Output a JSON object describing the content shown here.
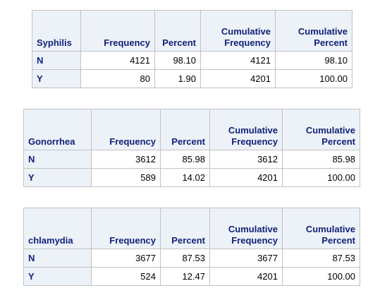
{
  "columns": [
    "Frequency",
    "Percent",
    "Cumulative Frequency",
    "Cumulative Percent"
  ],
  "tables": [
    {
      "variable": "Syphilis",
      "rows": [
        {
          "level": "N",
          "frequency": "4121",
          "percent": "98.10",
          "cum_frequency": "4121",
          "cum_percent": "98.10"
        },
        {
          "level": "Y",
          "frequency": "80",
          "percent": "1.90",
          "cum_frequency": "4201",
          "cum_percent": "100.00"
        }
      ]
    },
    {
      "variable": "Gonorrhea",
      "rows": [
        {
          "level": "N",
          "frequency": "3612",
          "percent": "85.98",
          "cum_frequency": "3612",
          "cum_percent": "85.98"
        },
        {
          "level": "Y",
          "frequency": "589",
          "percent": "14.02",
          "cum_frequency": "4201",
          "cum_percent": "100.00"
        }
      ]
    },
    {
      "variable": "chlamydia",
      "rows": [
        {
          "level": "N",
          "frequency": "3677",
          "percent": "87.53",
          "cum_frequency": "3677",
          "cum_percent": "87.53"
        },
        {
          "level": "Y",
          "frequency": "524",
          "percent": "12.47",
          "cum_frequency": "4201",
          "cum_percent": "100.00"
        }
      ]
    }
  ],
  "colors": {
    "header_bg": "#edf2f9",
    "header_text": "#112277",
    "border": "#c1c1c1"
  }
}
